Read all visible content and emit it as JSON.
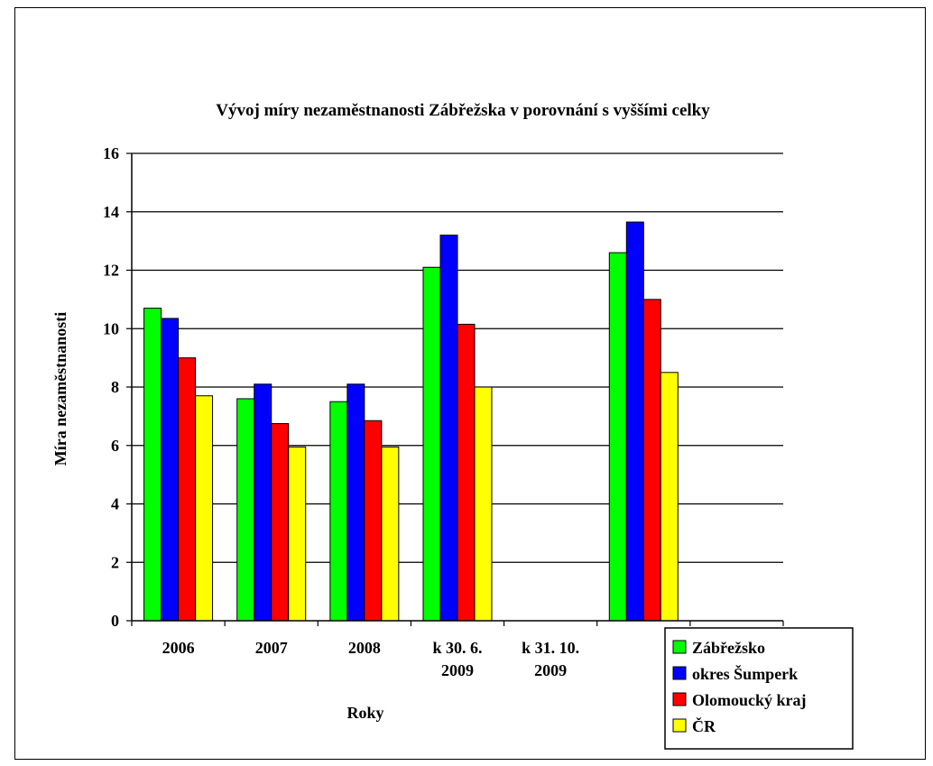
{
  "chart_data": {
    "type": "bar",
    "title": "Vývoj míry nezaměstnanosti Zábřežska v porovnání s vyššími celky",
    "xlabel": "Roky",
    "ylabel": "Míra nezaměstnanosti",
    "ylim": [
      0,
      16
    ],
    "yticks": [
      0,
      2,
      4,
      6,
      8,
      10,
      12,
      14,
      16
    ],
    "grid": true,
    "legend_position": "bottom-right",
    "categories": [
      [
        "2006"
      ],
      [
        "2007"
      ],
      [
        "2008"
      ],
      [
        "k 30. 6.",
        "2009"
      ],
      [
        "k 31. 10.",
        "2009"
      ],
      [
        ""
      ],
      [
        ""
      ]
    ],
    "series": [
      {
        "name": "Zábřežsko",
        "color": "#00ff00",
        "values": [
          10.7,
          7.6,
          7.5,
          12.1,
          null,
          12.6,
          null
        ]
      },
      {
        "name": "okres Šumperk",
        "color": "#0000ff",
        "values": [
          10.35,
          8.1,
          8.1,
          13.2,
          null,
          13.65,
          null
        ]
      },
      {
        "name": "Olomoucký kraj",
        "color": "#ff0000",
        "values": [
          9.0,
          6.75,
          6.85,
          10.15,
          null,
          11.0,
          null
        ]
      },
      {
        "name": "ČR",
        "color": "#ffff00",
        "values": [
          7.7,
          5.95,
          5.95,
          8.0,
          null,
          8.5,
          null
        ]
      }
    ]
  }
}
